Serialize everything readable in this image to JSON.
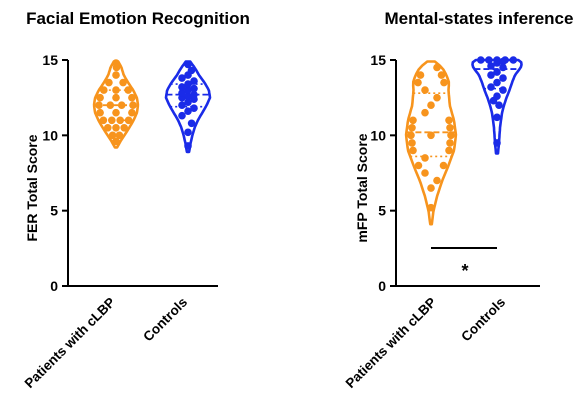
{
  "chart_data": [
    {
      "type": "violin",
      "title": "Facial Emotion Recognition",
      "ylabel": "FER Total Score",
      "xlabel": "",
      "ylim": [
        0,
        15
      ],
      "yticks": [
        0,
        5,
        10,
        15
      ],
      "categories": [
        "Patients with cLBP",
        "Controls"
      ],
      "colors": [
        "#F7941D",
        "#1A2BE8"
      ],
      "series": [
        {
          "name": "Patients with cLBP",
          "range": [
            9.2,
            14.9
          ],
          "width_profile": [
            [
              9.2,
              0.05
            ],
            [
              9.6,
              0.2
            ],
            [
              10.0,
              0.38
            ],
            [
              10.5,
              0.6
            ],
            [
              11.0,
              0.8
            ],
            [
              11.5,
              0.95
            ],
            [
              12.0,
              1.0
            ],
            [
              12.5,
              0.95
            ],
            [
              13.0,
              0.78
            ],
            [
              13.5,
              0.55
            ],
            [
              14.0,
              0.35
            ],
            [
              14.5,
              0.25
            ],
            [
              14.9,
              0.1
            ]
          ],
          "points": [
            9.6,
            10.0,
            10.0,
            10.5,
            10.5,
            10.5,
            11.0,
            11.0,
            11.0,
            11.0,
            11.5,
            11.5,
            11.5,
            12.0,
            12.0,
            12.0,
            12.0,
            12.5,
            12.5,
            12.5,
            13.0,
            13.0,
            13.0,
            13.5,
            13.5,
            14.0,
            14.5,
            14.8
          ],
          "median": 12.0,
          "quartiles": [
            11.0,
            13.0
          ]
        },
        {
          "name": "Controls",
          "range": [
            8.9,
            14.9
          ],
          "width_profile": [
            [
              8.9,
              0.05
            ],
            [
              9.5,
              0.12
            ],
            [
              10.0,
              0.2
            ],
            [
              10.5,
              0.3
            ],
            [
              11.0,
              0.45
            ],
            [
              11.5,
              0.65
            ],
            [
              12.0,
              0.85
            ],
            [
              12.5,
              1.0
            ],
            [
              13.0,
              0.95
            ],
            [
              13.5,
              0.75
            ],
            [
              14.0,
              0.5
            ],
            [
              14.5,
              0.3
            ],
            [
              14.9,
              0.1
            ]
          ],
          "points": [
            9.3,
            10.2,
            10.8,
            11.3,
            11.6,
            11.8,
            12.0,
            12.2,
            12.4,
            12.5,
            12.6,
            12.7,
            12.8,
            13.0,
            13.1,
            13.2,
            13.4,
            13.6,
            13.8,
            14.0,
            14.3,
            14.7
          ],
          "median": 12.7,
          "quartiles": [
            11.9,
            13.4
          ]
        }
      ]
    },
    {
      "type": "violin",
      "title": "Mental-states inference",
      "ylabel": "mFP Total Score",
      "xlabel": "",
      "ylim": [
        0,
        15
      ],
      "yticks": [
        0,
        5,
        10,
        15
      ],
      "categories": [
        "Patients with cLBP",
        "Controls"
      ],
      "colors": [
        "#F7941D",
        "#1A2BE8"
      ],
      "annotation": "*",
      "series": [
        {
          "name": "Patients with cLBP",
          "range": [
            4.1,
            14.9
          ],
          "width_profile": [
            [
              4.1,
              0.03
            ],
            [
              5.0,
              0.1
            ],
            [
              6.0,
              0.25
            ],
            [
              7.0,
              0.45
            ],
            [
              8.0,
              0.7
            ],
            [
              9.0,
              0.92
            ],
            [
              10.0,
              1.0
            ],
            [
              11.0,
              0.92
            ],
            [
              12.0,
              0.75
            ],
            [
              13.0,
              0.7
            ],
            [
              13.5,
              0.72
            ],
            [
              14.0,
              0.62
            ],
            [
              14.5,
              0.45
            ],
            [
              14.9,
              0.15
            ]
          ],
          "points": [
            5.2,
            6.5,
            7.0,
            7.5,
            8.0,
            8.0,
            8.5,
            9.0,
            9.0,
            9.5,
            9.5,
            10.0,
            10.0,
            10.0,
            10.5,
            10.5,
            11.0,
            11.0,
            11.5,
            12.0,
            12.5,
            13.0,
            13.5,
            13.5,
            14.0,
            14.0,
            14.5
          ],
          "median": 10.2,
          "quartiles": [
            8.6,
            12.8
          ]
        },
        {
          "name": "Controls",
          "range": [
            8.8,
            15.0
          ],
          "width_profile": [
            [
              8.8,
              0.04
            ],
            [
              9.5,
              0.08
            ],
            [
              10.5,
              0.12
            ],
            [
              11.5,
              0.2
            ],
            [
              12.0,
              0.28
            ],
            [
              12.5,
              0.38
            ],
            [
              13.0,
              0.5
            ],
            [
              13.5,
              0.6
            ],
            [
              14.0,
              0.72
            ],
            [
              14.5,
              0.95
            ],
            [
              14.8,
              1.0
            ],
            [
              15.0,
              0.85
            ]
          ],
          "points": [
            9.5,
            11.2,
            12.0,
            12.3,
            12.6,
            13.0,
            13.2,
            13.5,
            13.8,
            14.0,
            14.2,
            14.5,
            14.6,
            14.8,
            14.9,
            15.0,
            15.0,
            15.0,
            15.0,
            15.0
          ],
          "median": 14.4,
          "quartiles": [
            13.1,
            15.0
          ]
        }
      ]
    }
  ]
}
